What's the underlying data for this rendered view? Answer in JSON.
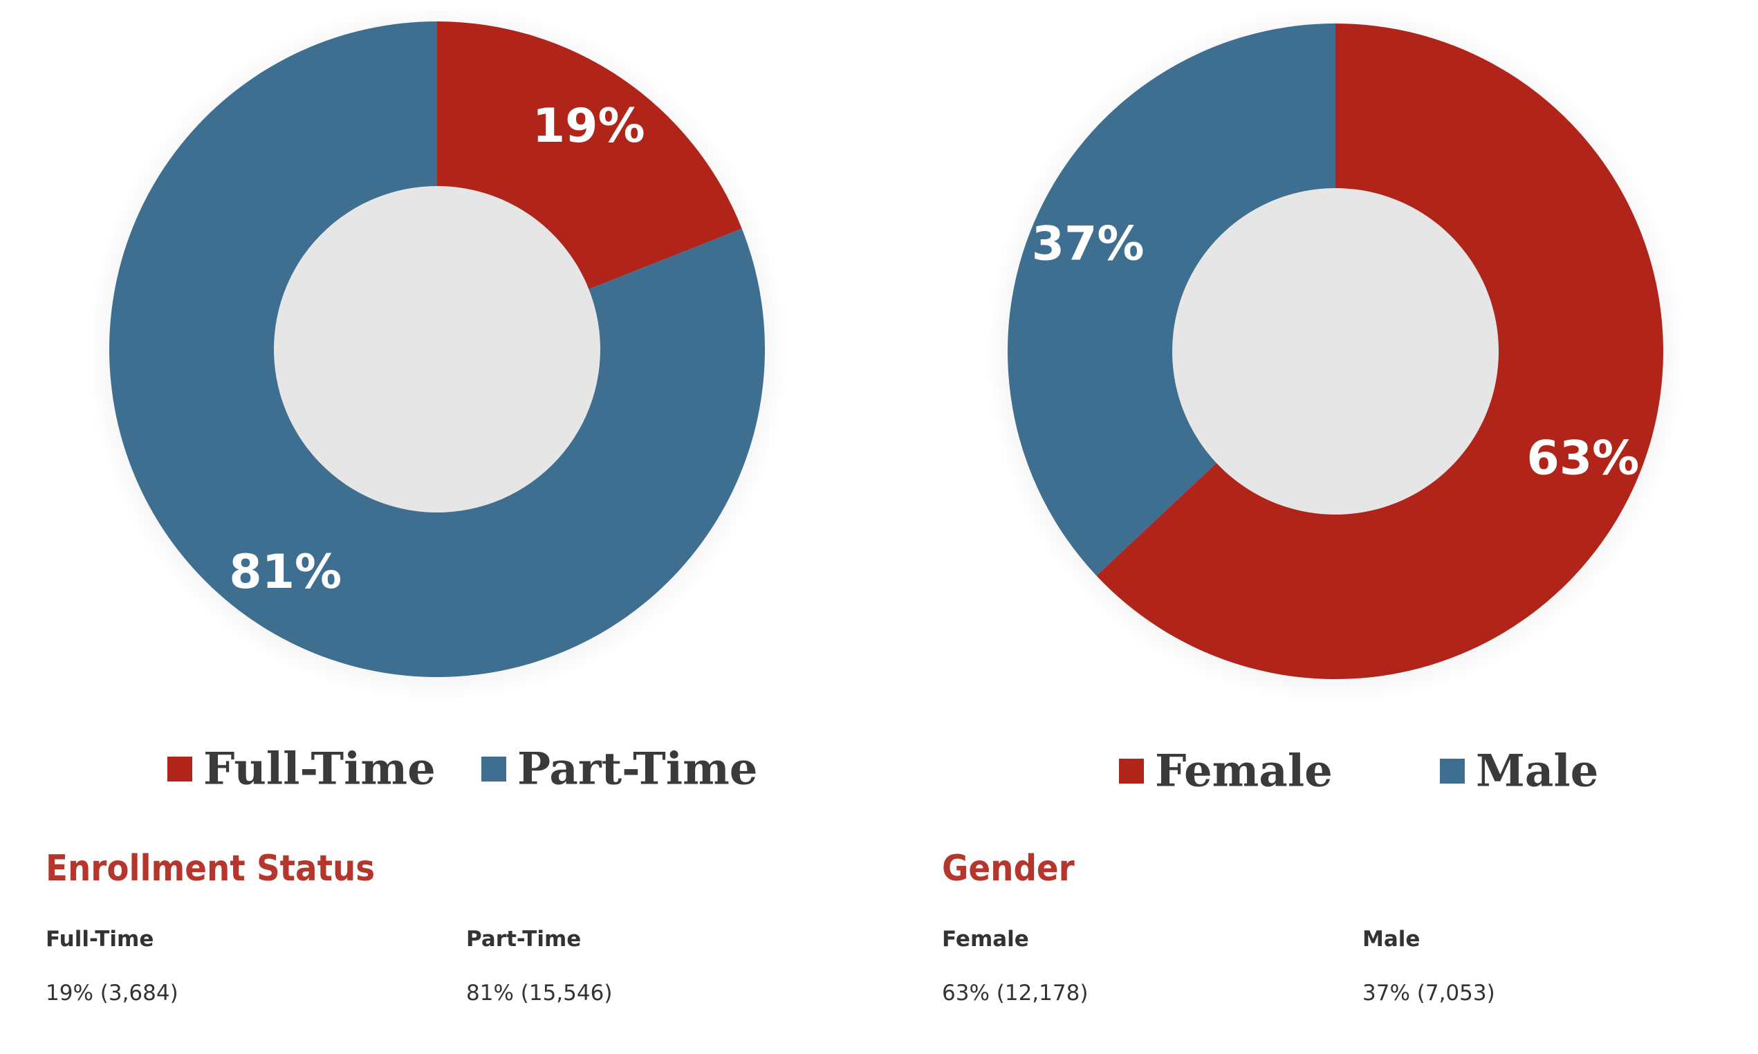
{
  "colors": {
    "red": "#b0241a",
    "blue": "#3e6e90",
    "title_red": "#b5362d",
    "text": "#333333"
  },
  "chart_data": [
    {
      "type": "pie",
      "title": "",
      "categories": [
        "Full-Time",
        "Part-Time"
      ],
      "values": [
        19,
        81
      ],
      "labels": [
        "19%",
        "81%"
      ],
      "series_colors": [
        "#b0241a",
        "#3e6e90"
      ],
      "legend": [
        "Full-Time",
        "Part-Time"
      ],
      "legend_position": "bottom"
    },
    {
      "type": "pie",
      "title": "",
      "categories": [
        "Female",
        "Male"
      ],
      "values": [
        63,
        37
      ],
      "labels": [
        "63%",
        "37%"
      ],
      "series_colors": [
        "#b0241a",
        "#3e6e90"
      ],
      "legend": [
        "Female",
        "Male"
      ],
      "legend_position": "bottom"
    }
  ],
  "enrollment": {
    "title": "Enrollment Status",
    "items": [
      {
        "label": "Full-Time",
        "value": "19% (3,684)"
      },
      {
        "label": "Part-Time",
        "value": "81% (15,546)"
      }
    ]
  },
  "gender": {
    "title": "Gender",
    "items": [
      {
        "label": "Female",
        "value": "63% (12,178)"
      },
      {
        "label": "Male",
        "value": "37% (7,053)"
      }
    ]
  }
}
